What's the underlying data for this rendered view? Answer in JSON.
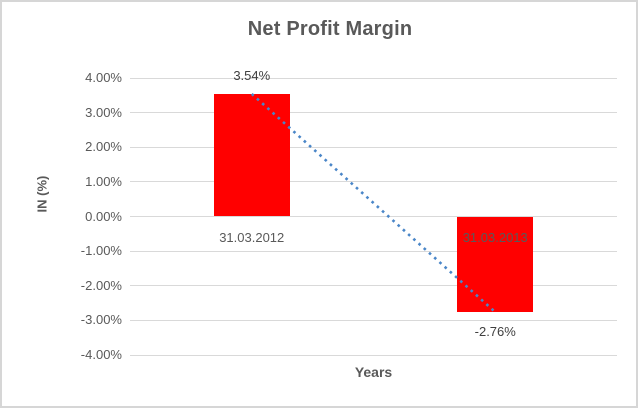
{
  "frame": {
    "background": "#ffffff",
    "border_color": "#d6d6d6"
  },
  "chart_data": {
    "type": "bar",
    "title": "Net Profit Margin",
    "xlabel": "Years",
    "ylabel": "IN (%)",
    "categories": [
      "31.03.2012",
      "31.03.2013"
    ],
    "values": [
      3.54,
      -2.76
    ],
    "data_labels": [
      "3.54%",
      "-2.76%"
    ],
    "ylim": [
      -4,
      4
    ],
    "yticks": [
      "4.00%",
      "3.00%",
      "2.00%",
      "1.00%",
      "0.00%",
      "-1.00%",
      "-2.00%",
      "-3.00%",
      "-4.00%"
    ],
    "grid": true,
    "legend": "none",
    "bar_color": "#ff0000",
    "gridline_color": "#d9d9d9",
    "text_color": "#595959",
    "trendline": {
      "type": "linear",
      "style": "dotted",
      "color": "#4a86c8",
      "from_category_index": 0,
      "from_value": 3.54,
      "to_category_index": 1,
      "to_value": -2.76
    }
  }
}
